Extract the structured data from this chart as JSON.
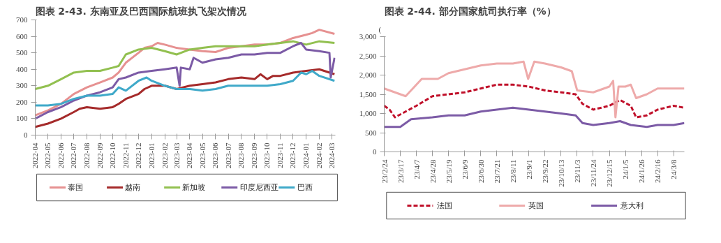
{
  "chart_data": [
    {
      "type": "line",
      "title": "图表 2-43. 东南亚及巴西国际航班执飞架次情况",
      "xlim": [
        "2022-04-01",
        "2024-03-10"
      ],
      "ylim": [
        0,
        700
      ],
      "yticks": [
        0,
        100,
        200,
        300,
        400,
        500,
        600,
        700
      ],
      "xticks": [
        "2022-04",
        "2022-05",
        "2022-06",
        "2022-07",
        "2022-08",
        "2022-09",
        "2022-10",
        "2022-11",
        "2022-12",
        "2023-01",
        "2023-02",
        "2023-03",
        "2023-04",
        "2023-05",
        "2023-06",
        "2023-07",
        "2023-08",
        "2023-09",
        "2023-10",
        "2023-11",
        "2023-12",
        "2024-01",
        "2024-02",
        "2024-03"
      ],
      "grid": false,
      "legend": "bottom",
      "series": [
        {
          "name": "泰国",
          "color": "#e69191",
          "x": [
            "2022-04-01",
            "2022-05-01",
            "2022-06-01",
            "2022-07-01",
            "2022-08-01",
            "2022-09-01",
            "2022-10-01",
            "2022-10-15",
            "2022-11-01",
            "2022-12-01",
            "2022-12-15",
            "2023-01-01",
            "2023-01-15",
            "2023-02-01",
            "2023-03-01",
            "2023-04-01",
            "2023-05-01",
            "2023-06-01",
            "2023-07-01",
            "2023-08-01",
            "2023-09-01",
            "2023-10-01",
            "2023-11-01",
            "2023-12-01",
            "2024-01-01",
            "2024-01-15",
            "2024-02-01",
            "2024-03-08"
          ],
          "values": [
            120,
            150,
            190,
            250,
            290,
            320,
            350,
            380,
            440,
            500,
            530,
            540,
            560,
            550,
            530,
            520,
            510,
            505,
            530,
            540,
            550,
            550,
            560,
            590,
            610,
            620,
            640,
            615
          ]
        },
        {
          "name": "越南",
          "color": "#a52a2a",
          "x": [
            "2022-04-01",
            "2022-05-01",
            "2022-06-01",
            "2022-07-01",
            "2022-07-15",
            "2022-08-01",
            "2022-09-01",
            "2022-10-01",
            "2022-10-15",
            "2022-11-01",
            "2022-12-01",
            "2022-12-15",
            "2023-01-01",
            "2023-02-01",
            "2023-03-01",
            "2023-04-01",
            "2023-05-01",
            "2023-06-01",
            "2023-07-01",
            "2023-08-01",
            "2023-09-01",
            "2023-09-15",
            "2023-10-01",
            "2023-10-15",
            "2023-11-01",
            "2023-12-01",
            "2024-01-01",
            "2024-02-01",
            "2024-03-08"
          ],
          "values": [
            50,
            70,
            100,
            140,
            160,
            170,
            160,
            170,
            190,
            220,
            250,
            280,
            300,
            300,
            280,
            300,
            310,
            320,
            340,
            350,
            340,
            370,
            340,
            360,
            360,
            380,
            390,
            400,
            370
          ]
        },
        {
          "name": "新加坡",
          "color": "#92c050",
          "x": [
            "2022-04-01",
            "2022-05-01",
            "2022-06-01",
            "2022-07-01",
            "2022-08-01",
            "2022-09-01",
            "2022-10-01",
            "2022-10-15",
            "2022-11-01",
            "2022-12-01",
            "2023-01-01",
            "2023-02-01",
            "2023-03-01",
            "2023-04-01",
            "2023-05-01",
            "2023-06-01",
            "2023-07-01",
            "2023-08-01",
            "2023-09-01",
            "2023-10-01",
            "2023-11-01",
            "2023-12-01",
            "2024-01-01",
            "2024-02-01",
            "2024-03-08"
          ],
          "values": [
            280,
            300,
            340,
            380,
            390,
            390,
            410,
            420,
            490,
            520,
            530,
            510,
            490,
            520,
            530,
            540,
            540,
            540,
            540,
            550,
            560,
            570,
            550,
            570,
            560
          ]
        },
        {
          "name": "印度尼西亚",
          "color": "#7c5ba6",
          "x": [
            "2022-04-01",
            "2022-05-01",
            "2022-06-01",
            "2022-07-01",
            "2022-08-01",
            "2022-09-01",
            "2022-10-01",
            "2022-10-15",
            "2022-11-01",
            "2022-12-01",
            "2023-01-01",
            "2023-02-01",
            "2023-03-01",
            "2023-03-08",
            "2023-03-11",
            "2023-04-01",
            "2023-04-10",
            "2023-05-01",
            "2023-06-01",
            "2023-07-01",
            "2023-08-01",
            "2023-09-01",
            "2023-10-01",
            "2023-11-01",
            "2023-12-01",
            "2023-12-20",
            "2024-01-01",
            "2024-02-01",
            "2024-02-25",
            "2024-02-28",
            "2024-03-08"
          ],
          "values": [
            100,
            140,
            170,
            210,
            240,
            260,
            290,
            340,
            350,
            380,
            390,
            400,
            410,
            300,
            410,
            400,
            470,
            440,
            460,
            470,
            490,
            490,
            500,
            500,
            540,
            560,
            520,
            510,
            500,
            350,
            470
          ]
        },
        {
          "name": "巴西",
          "color": "#3fa9c9",
          "x": [
            "2022-04-01",
            "2022-05-01",
            "2022-06-01",
            "2022-07-01",
            "2022-08-01",
            "2022-09-01",
            "2022-10-01",
            "2022-10-15",
            "2022-11-01",
            "2022-12-01",
            "2022-12-20",
            "2023-01-01",
            "2023-02-01",
            "2023-03-01",
            "2023-04-01",
            "2023-05-01",
            "2023-06-01",
            "2023-07-01",
            "2023-08-01",
            "2023-09-01",
            "2023-10-01",
            "2023-11-01",
            "2023-12-01",
            "2023-12-20",
            "2024-01-01",
            "2024-01-15",
            "2024-02-01",
            "2024-03-08"
          ],
          "values": [
            180,
            180,
            190,
            220,
            240,
            240,
            250,
            290,
            270,
            330,
            350,
            330,
            300,
            280,
            280,
            270,
            280,
            300,
            300,
            300,
            300,
            310,
            330,
            380,
            370,
            390,
            360,
            330
          ]
        }
      ]
    },
    {
      "type": "line",
      "title": "图表 2-44. 部分国家航司执行率（%）",
      "annotations": [
        "("
      ],
      "xlim": [
        "2023-02-24",
        "2024-03-22"
      ],
      "ylim": [
        0,
        3000
      ],
      "yticks": [
        0,
        {
          "value": 500,
          "label": "500"
        },
        {
          "value": 1000,
          "label": "1,000"
        },
        {
          "value": 1500,
          "label": "1,500"
        },
        {
          "value": 2000,
          "label": "2,000"
        },
        {
          "value": 2500,
          "label": "2,500"
        },
        {
          "value": 3000,
          "label": "3,000"
        }
      ],
      "xticks": [
        {
          "value": "2023-02-24",
          "label": "23/2/24"
        },
        {
          "value": "2023-03-17",
          "label": "23/3/17"
        },
        {
          "value": "2023-04-07",
          "label": "23/4/7"
        },
        {
          "value": "2023-04-28",
          "label": "23/4/28"
        },
        {
          "value": "2023-05-19",
          "label": "23/5/19"
        },
        {
          "value": "2023-06-09",
          "label": "23/6/9"
        },
        {
          "value": "2023-06-30",
          "label": "23/6/30"
        },
        {
          "value": "2023-07-21",
          "label": "23/7/21"
        },
        {
          "value": "2023-08-11",
          "label": "23/8/11"
        },
        {
          "value": "2023-09-01",
          "label": "23/9/1"
        },
        {
          "value": "2023-09-22",
          "label": "23/9/22"
        },
        {
          "value": "2023-10-13",
          "label": "23/10/13"
        },
        {
          "value": "2023-11-03",
          "label": "23/11/3"
        },
        {
          "value": "2023-11-24",
          "label": "23/11/24"
        },
        {
          "value": "2023-12-15",
          "label": "23/12/15"
        },
        {
          "value": "2024-01-05",
          "label": "24/1/5"
        },
        {
          "value": "2024-01-26",
          "label": "24/1/26"
        },
        {
          "value": "2024-02-16",
          "label": "24/2/16"
        },
        {
          "value": "2024-03-08",
          "label": "24/3/8"
        }
      ],
      "grid": false,
      "legend": "bottom",
      "series": [
        {
          "name": "法国",
          "color": "#c0102a",
          "line_style": "dashed",
          "x": [
            "2023-02-24",
            "2023-03-03",
            "2023-03-10",
            "2023-03-24",
            "2023-04-07",
            "2023-04-28",
            "2023-05-19",
            "2023-06-09",
            "2023-06-30",
            "2023-07-21",
            "2023-08-11",
            "2023-09-01",
            "2023-09-22",
            "2023-10-13",
            "2023-11-01",
            "2023-11-10",
            "2023-11-24",
            "2023-12-15",
            "2023-12-29",
            "2024-01-12",
            "2024-01-19",
            "2024-02-02",
            "2024-02-16",
            "2024-03-08",
            "2024-03-22"
          ],
          "values": [
            1200,
            1100,
            900,
            1050,
            1200,
            1450,
            1500,
            1550,
            1650,
            1750,
            1750,
            1700,
            1600,
            1550,
            1500,
            1250,
            1100,
            1200,
            1350,
            1200,
            900,
            950,
            1100,
            1200,
            1150
          ]
        },
        {
          "name": "英国",
          "color": "#eeaaaa",
          "line_style": "solid",
          "x": [
            "2023-02-24",
            "2023-03-17",
            "2023-03-24",
            "2023-04-07",
            "2023-04-14",
            "2023-05-05",
            "2023-05-19",
            "2023-06-09",
            "2023-06-30",
            "2023-07-21",
            "2023-08-11",
            "2023-08-25",
            "2023-08-31",
            "2023-09-08",
            "2023-09-22",
            "2023-10-13",
            "2023-10-27",
            "2023-11-03",
            "2023-11-24",
            "2023-12-15",
            "2023-12-20",
            "2023-12-23",
            "2023-12-27",
            "2024-01-05",
            "2024-01-12",
            "2024-01-19",
            "2024-02-02",
            "2024-02-16",
            "2024-03-08",
            "2024-03-22"
          ],
          "values": [
            1650,
            1500,
            1450,
            1750,
            1900,
            1900,
            2050,
            2150,
            2250,
            2300,
            2300,
            2350,
            1900,
            2350,
            2300,
            2200,
            2100,
            1600,
            1550,
            1700,
            1850,
            900,
            1700,
            1700,
            1750,
            1400,
            1500,
            1650,
            1650,
            1650
          ]
        },
        {
          "name": "意大利",
          "color": "#7c5ba6",
          "line_style": "solid",
          "x": [
            "2023-02-24",
            "2023-03-17",
            "2023-03-31",
            "2023-04-28",
            "2023-05-19",
            "2023-06-09",
            "2023-06-30",
            "2023-07-21",
            "2023-08-11",
            "2023-09-01",
            "2023-09-22",
            "2023-10-13",
            "2023-11-01",
            "2023-11-10",
            "2023-11-24",
            "2023-12-15",
            "2023-12-29",
            "2024-01-12",
            "2024-02-02",
            "2024-02-16",
            "2024-03-08",
            "2024-03-22"
          ],
          "values": [
            650,
            650,
            850,
            900,
            950,
            950,
            1050,
            1100,
            1150,
            1100,
            1050,
            1000,
            950,
            750,
            700,
            750,
            800,
            700,
            650,
            700,
            700,
            750
          ]
        }
      ]
    }
  ]
}
